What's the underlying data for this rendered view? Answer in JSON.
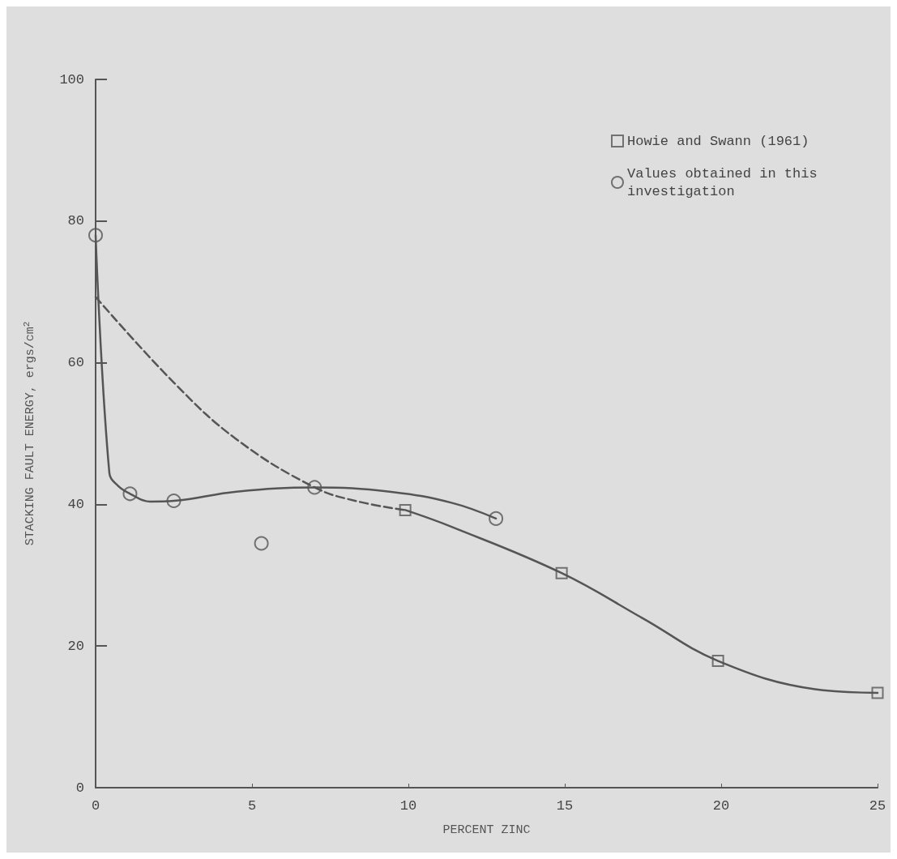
{
  "chart_data": {
    "type": "scatter",
    "xlabel": "PERCENT ZINC",
    "ylabel": "STACKING FAULT ENERGY, ergs/cm$^{2}$",
    "xlim": [
      0,
      25
    ],
    "xticks": [
      0,
      5,
      10,
      15,
      20,
      25
    ],
    "ylim": [
      0,
      100
    ],
    "yticks": [
      0,
      20,
      40,
      60,
      80,
      100
    ],
    "grid": false,
    "legend": "top right",
    "series": [
      {
        "name": "Howie and Swann (1961)",
        "marker": "square",
        "color": "#555555",
        "x": [
          9.9,
          14.9,
          19.9,
          25
        ],
        "values": [
          39.2,
          30.3,
          17.9,
          13.4
        ]
      },
      {
        "name": "Values obtained in this investigation",
        "marker": "circle",
        "color": "#555555",
        "x": [
          0,
          1.1,
          2.5,
          5.3,
          7,
          12.8
        ],
        "values": [
          78,
          41.5,
          40.5,
          34.5,
          42.4,
          38
        ]
      },
      {
        "type": "line",
        "marker": "none",
        "line_style": "solid",
        "color": "#555555",
        "x": [
          0,
          0.44,
          0.72,
          1.1,
          1.74,
          2.5,
          4.5,
          7,
          9.4,
          11.4,
          12.8
        ],
        "values": [
          78,
          44.4,
          42.6,
          41.5,
          40.4,
          40.5,
          41.8,
          42.4,
          41.8,
          40.2,
          38
        ]
      },
      {
        "type": "line",
        "marker": "none",
        "line_style": "solid",
        "color": "#555555",
        "x": [
          9.9,
          11.4,
          14.9,
          17.5,
          19.9,
          23,
          25
        ],
        "values": [
          39.2,
          36.8,
          30.3,
          23.9,
          17.9,
          13.9,
          13.4
        ]
      },
      {
        "type": "line",
        "marker": "none",
        "line_style": "dashed",
        "color": "#555555",
        "x": [
          0,
          2.5,
          4.5,
          7,
          8.4,
          9.9
        ],
        "values": [
          69.3,
          57.2,
          49.2,
          42.4,
          40.4,
          39.2
        ]
      }
    ]
  }
}
